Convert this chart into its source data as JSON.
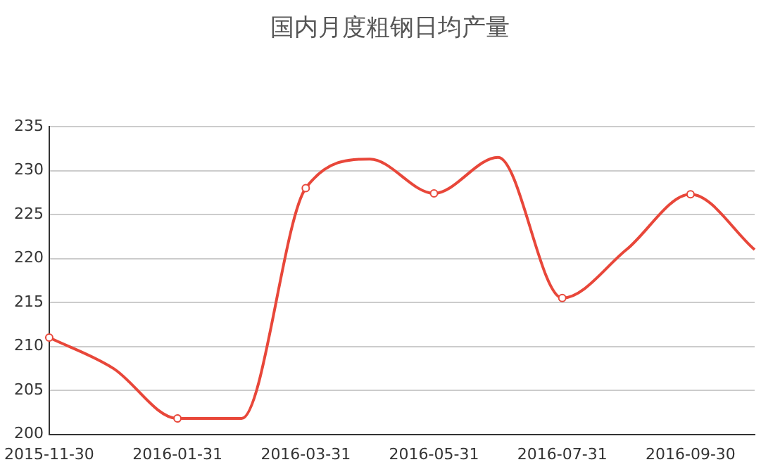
{
  "chart_data": {
    "type": "line",
    "title": "国内月度粗钢日均产量",
    "categories": [
      "2015-11-30",
      null,
      "2016-01-31",
      null,
      "2016-03-31",
      null,
      "2016-05-31",
      null,
      "2016-07-31",
      null,
      "2016-09-30",
      null
    ],
    "series": [
      {
        "color": "#e8473a",
        "values": [
          211,
          207.5,
          201.8,
          201.8,
          228,
          231.3,
          227.4,
          231.5,
          215.5,
          221,
          227.3,
          221
        ]
      }
    ],
    "ylim": [
      200,
      235
    ],
    "yticks": [
      200,
      205,
      210,
      215,
      220,
      225,
      230,
      235
    ],
    "grid": "y",
    "legend": false,
    "marker": "circle",
    "line_style": "solid"
  }
}
